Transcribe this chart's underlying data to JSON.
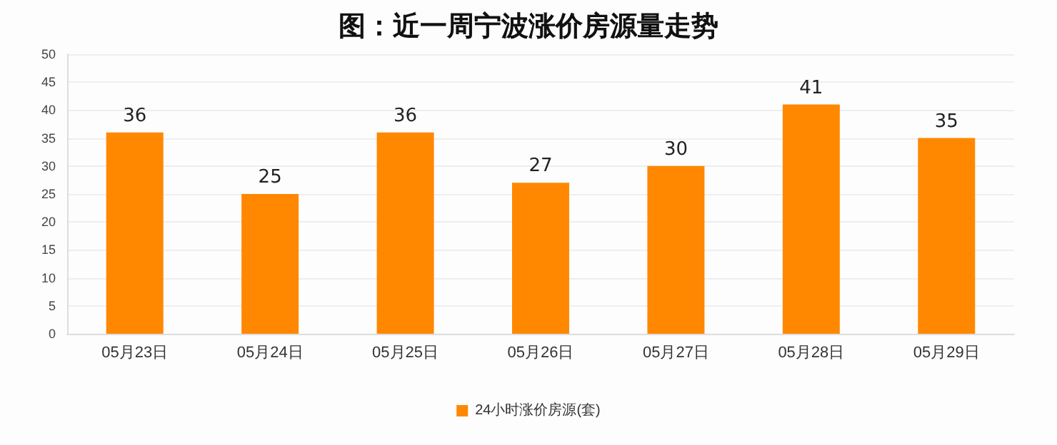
{
  "chart_data": {
    "type": "bar",
    "title": "图：近一周宁波涨价房源量走势",
    "categories": [
      "05月23日",
      "05月24日",
      "05月25日",
      "05月26日",
      "05月27日",
      "05月28日",
      "05月29日"
    ],
    "series": [
      {
        "name": "24小时涨价房源(套)",
        "color": "#ff8800",
        "values": [
          36,
          25,
          36,
          27,
          30,
          41,
          35
        ]
      }
    ],
    "ylim": [
      0,
      50
    ],
    "yticks": [
      0,
      5,
      10,
      15,
      20,
      25,
      30,
      35,
      40,
      45,
      50
    ],
    "grid": "y",
    "legend": "bottom",
    "data_labels": true
  }
}
